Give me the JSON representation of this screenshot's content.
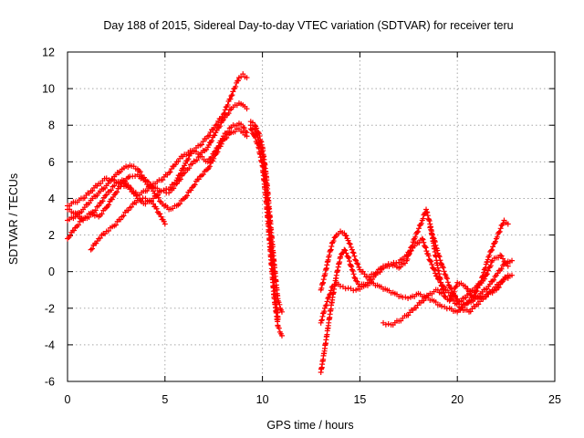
{
  "chart_data": {
    "type": "scatter",
    "title": "Day 188 of 2015, Sidereal Day-to-day VTEC variation (SDTVAR) for receiver teru",
    "xlabel": "GPS time / hours",
    "ylabel": "SDTVAR / TECUs",
    "xlim": [
      0,
      25
    ],
    "ylim": [
      -6,
      12
    ],
    "x_ticks": [
      "0",
      "5",
      "10",
      "15",
      "20",
      "25"
    ],
    "y_ticks": [
      "-6",
      "-4",
      "-2",
      "0",
      "2",
      "4",
      "6",
      "8",
      "10",
      "12"
    ],
    "grid": true,
    "marker": "+",
    "color": "#ff0000",
    "series": [
      {
        "x": [
          0.0,
          0.4,
          0.8,
          1.2,
          1.6,
          2.0,
          2.4,
          2.8,
          3.2,
          3.6,
          4.0,
          4.4,
          4.8,
          5.2,
          5.6,
          6.0,
          6.4,
          6.8,
          7.2,
          7.6,
          8.0,
          8.4,
          8.8,
          9.0,
          9.2
        ],
        "y": [
          3.6,
          3.8,
          4.0,
          4.4,
          4.8,
          5.1,
          5.0,
          4.8,
          4.5,
          4.2,
          4.4,
          4.8,
          5.0,
          5.4,
          6.0,
          6.4,
          6.6,
          6.9,
          7.4,
          8.0,
          8.6,
          9.6,
          10.6,
          10.8,
          10.6
        ]
      },
      {
        "x": [
          0.0,
          0.4,
          0.8,
          1.2,
          1.6,
          2.0,
          2.4,
          2.8,
          3.2,
          3.6,
          4.0,
          4.4,
          4.8,
          5.2,
          5.6,
          6.0,
          6.4,
          6.8,
          7.2,
          7.6,
          8.0,
          8.4,
          8.8,
          9.0,
          9.2
        ],
        "y": [
          2.8,
          3.0,
          3.4,
          3.9,
          4.3,
          4.7,
          5.2,
          5.6,
          5.8,
          5.6,
          5.0,
          4.6,
          4.4,
          4.5,
          5.0,
          5.8,
          6.6,
          6.4,
          6.8,
          7.6,
          8.3,
          8.9,
          9.2,
          9.1,
          8.9
        ]
      },
      {
        "x": [
          0.0,
          0.4,
          0.8,
          1.2,
          1.6,
          2.0,
          2.4,
          2.8,
          3.2,
          3.6,
          4.0,
          4.4,
          4.8,
          5.2,
          5.6,
          6.0,
          6.4,
          6.8,
          7.2,
          7.6,
          8.0,
          8.4,
          8.8,
          9.0,
          9.2
        ],
        "y": [
          3.4,
          3.2,
          2.8,
          3.1,
          3.6,
          4.2,
          4.7,
          5.0,
          4.6,
          4.0,
          3.7,
          4.0,
          4.4,
          4.3,
          4.8,
          5.4,
          5.9,
          6.3,
          6.0,
          6.6,
          7.4,
          7.9,
          8.1,
          7.9,
          7.6
        ]
      },
      {
        "x": [
          0.0,
          0.4,
          0.8,
          1.2,
          1.6,
          2.0,
          2.4,
          2.8,
          3.2,
          3.6,
          4.0,
          4.4,
          4.8,
          5.2,
          5.6,
          6.0,
          6.4,
          6.8,
          7.2,
          7.6,
          8.0,
          8.4,
          8.8,
          9.0,
          9.2
        ],
        "y": [
          1.8,
          2.4,
          2.9,
          3.2,
          3.0,
          3.5,
          4.2,
          4.8,
          5.2,
          5.3,
          4.9,
          4.4,
          3.8,
          3.4,
          3.6,
          4.0,
          4.6,
          5.2,
          5.6,
          6.4,
          7.2,
          7.6,
          7.8,
          7.6,
          7.4
        ]
      },
      {
        "x": [
          1.2,
          1.6,
          2.0,
          2.4,
          2.8,
          3.2,
          3.6,
          4.0,
          4.4,
          4.8,
          5.0
        ],
        "y": [
          1.2,
          1.8,
          2.2,
          2.5,
          3.0,
          3.5,
          3.9,
          4.0,
          3.7,
          3.0,
          2.6
        ]
      },
      {
        "x": [
          9.4,
          9.6,
          9.8,
          10.0,
          10.2,
          10.4,
          10.6,
          10.8,
          11.0
        ],
        "y": [
          8.2,
          8.0,
          7.6,
          6.8,
          5.2,
          2.8,
          0.4,
          -1.6,
          -2.2
        ]
      },
      {
        "x": [
          9.4,
          9.6,
          9.8,
          10.0,
          10.2,
          10.4,
          10.6,
          10.8,
          11.0
        ],
        "y": [
          7.8,
          7.4,
          6.8,
          5.8,
          3.8,
          1.2,
          -1.4,
          -3.0,
          -3.5
        ]
      },
      {
        "x": [
          9.4,
          9.6,
          9.8,
          10.0,
          10.2,
          10.4,
          10.6,
          10.8
        ],
        "y": [
          8.0,
          7.8,
          7.2,
          6.4,
          4.6,
          2.0,
          -0.6,
          -2.6
        ]
      },
      {
        "x": [
          13.0,
          13.2,
          13.4,
          13.6,
          13.8,
          14.0,
          14.2,
          14.4,
          14.6,
          14.8,
          15.0,
          15.4,
          15.8,
          16.2,
          16.6,
          17.0,
          17.4,
          17.8,
          18.2,
          18.4,
          18.6,
          18.8,
          19.0,
          19.2,
          19.4,
          19.6,
          19.8,
          20.0,
          20.4,
          20.8,
          21.2,
          21.6,
          22.0,
          22.4,
          22.6
        ],
        "y": [
          -1.0,
          -0.2,
          0.8,
          1.6,
          2.0,
          2.2,
          2.1,
          1.7,
          1.2,
          0.6,
          0.1,
          -0.3,
          -0.1,
          0.3,
          0.4,
          0.2,
          0.6,
          1.8,
          2.8,
          3.4,
          2.6,
          1.4,
          0.2,
          -0.8,
          -1.4,
          -1.6,
          -1.2,
          -0.6,
          -0.8,
          -1.4,
          -0.6,
          0.8,
          1.8,
          2.8,
          2.6
        ]
      },
      {
        "x": [
          13.0,
          13.2,
          13.4,
          13.6,
          13.8,
          14.0,
          14.2,
          14.4,
          14.6,
          14.8,
          15.0,
          15.4,
          15.8,
          16.2,
          16.6,
          17.0,
          17.4,
          17.8,
          18.2,
          18.6,
          19.0,
          19.4,
          19.8,
          20.2,
          20.6,
          21.0,
          21.4,
          21.8,
          22.2,
          22.6
        ],
        "y": [
          -5.5,
          -4.2,
          -2.8,
          -1.4,
          -0.2,
          0.8,
          1.2,
          0.8,
          0.1,
          -0.5,
          -0.8,
          -0.6,
          -0.2,
          0.2,
          0.4,
          0.5,
          0.9,
          1.4,
          1.8,
          0.6,
          -0.4,
          -1.0,
          -1.4,
          -1.6,
          -1.2,
          -0.8,
          -0.4,
          0.6,
          0.9,
          0.3
        ]
      },
      {
        "x": [
          13.0,
          13.2,
          13.4,
          13.6,
          13.8,
          14.0,
          14.4,
          14.8,
          15.2,
          15.6,
          16.0,
          16.4,
          16.8,
          17.2,
          17.6,
          18.0,
          18.4,
          18.8,
          19.2,
          19.6,
          20.0,
          20.4,
          20.8,
          21.2,
          21.6,
          22.0,
          22.4,
          22.8
        ],
        "y": [
          -2.8,
          -2.0,
          -1.4,
          -0.8,
          -0.6,
          -0.8,
          -0.9,
          -1.0,
          -0.8,
          -0.6,
          -0.8,
          -1.0,
          -1.2,
          -1.4,
          -1.4,
          -1.2,
          -1.4,
          -1.6,
          -1.9,
          -2.0,
          -2.2,
          -1.8,
          -1.4,
          -1.4,
          -1.2,
          -1.0,
          -0.4,
          -0.2
        ]
      },
      {
        "x": [
          16.2,
          16.6,
          17.0,
          17.4,
          17.8,
          18.2,
          18.6,
          19.0,
          19.4,
          19.8,
          20.2,
          20.6,
          21.0,
          21.4,
          21.8,
          22.2,
          22.6
        ],
        "y": [
          -2.8,
          -2.9,
          -2.7,
          -2.4,
          -2.0,
          -1.6,
          -1.2,
          -1.0,
          -1.4,
          -1.6,
          -2.0,
          -2.2,
          -1.8,
          -1.4,
          -1.0,
          -0.6,
          -0.2
        ]
      },
      {
        "x": [
          18.6,
          18.8,
          19.0,
          19.2,
          19.4,
          19.6,
          19.8,
          20.0,
          20.4,
          20.8,
          21.2,
          21.6,
          22.0,
          22.4,
          22.8
        ],
        "y": [
          2.4,
          1.8,
          1.0,
          0.4,
          -0.2,
          -0.8,
          -1.2,
          -1.6,
          -1.8,
          -1.6,
          -1.2,
          -0.8,
          -0.2,
          0.4,
          0.6
        ]
      }
    ]
  }
}
